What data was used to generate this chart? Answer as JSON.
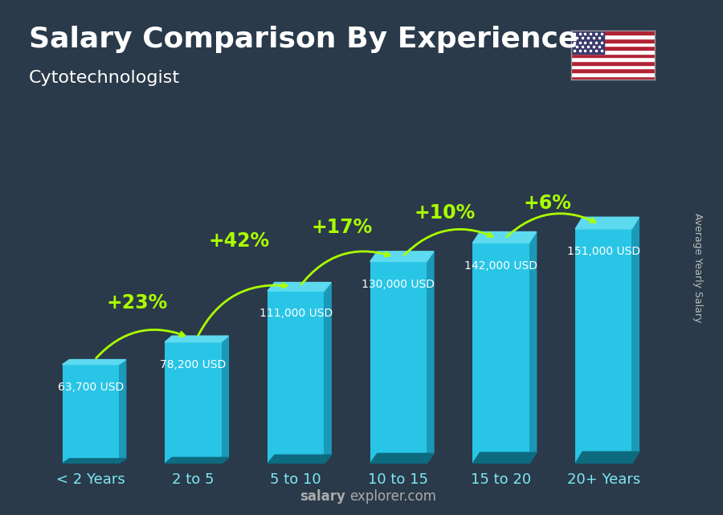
{
  "title": "Salary Comparison By Experience",
  "subtitle": "Cytotechnologist",
  "ylabel": "Average Yearly Salary",
  "watermark_left": "salary",
  "watermark_right": "explorer.com",
  "categories": [
    "< 2 Years",
    "2 to 5",
    "5 to 10",
    "10 to 15",
    "15 to 20",
    "20+ Years"
  ],
  "values": [
    63700,
    78200,
    111000,
    130000,
    142000,
    151000
  ],
  "bar_labels": [
    "63,700 USD",
    "78,200 USD",
    "111,000 USD",
    "130,000 USD",
    "142,000 USD",
    "151,000 USD"
  ],
  "pct_labels": [
    "+23%",
    "+42%",
    "+17%",
    "+10%",
    "+6%"
  ],
  "color_face": "#29c5e6",
  "color_side": "#1a9ab8",
  "color_top": "#5ddaf0",
  "color_bottom_face": "#0d6a7f",
  "pct_color": "#aaff00",
  "title_fontsize": 26,
  "subtitle_fontsize": 16,
  "cat_fontsize": 13,
  "val_fontsize": 10,
  "pct_fontsize": 17,
  "ylabel_fontsize": 9,
  "watermark_fontsize": 12,
  "bar_width": 0.55,
  "max_val": 160000,
  "ylim_factor": 1.45
}
